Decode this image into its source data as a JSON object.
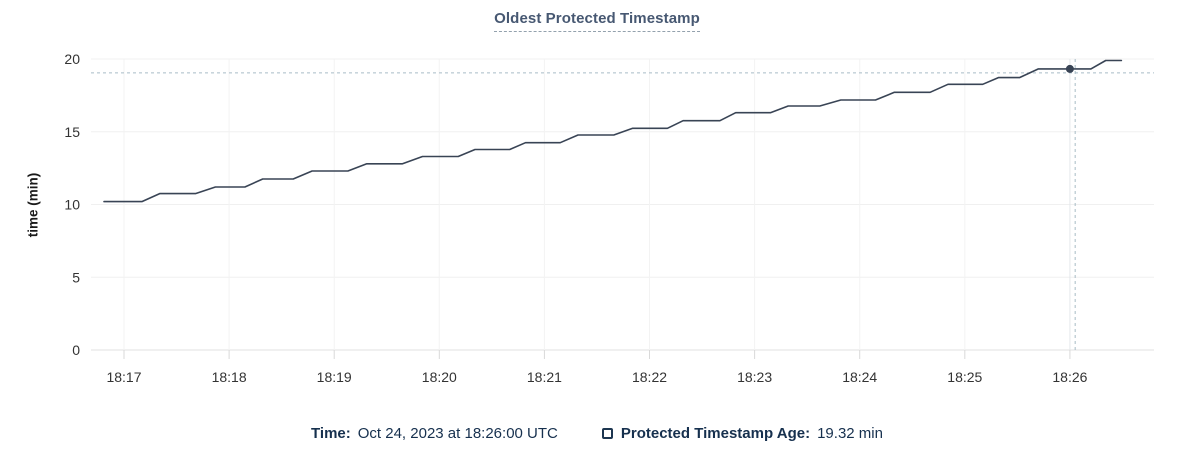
{
  "title": "Oldest Protected Timestamp",
  "colors": {
    "series_line": "#394455",
    "hover_dot": "#394455",
    "crosshair": "#a9bcc6",
    "grid_horizontal": "#f0f0f0",
    "grid_vertical": "#f3f3f3",
    "grid_hover_band": "#e4e8eb",
    "axis_line": "#e0e0e0",
    "tick_mark": "#d9d9d9",
    "tick_label": "#333333",
    "title_text": "#475872",
    "legend_text": "#16304e"
  },
  "chart_data": {
    "type": "line",
    "title": "Oldest Protected Timestamp",
    "xlabel": "",
    "ylabel": "time (min)",
    "ylim": [
      0,
      20
    ],
    "yticks": [
      {
        "v": 0,
        "label": "0"
      },
      {
        "v": 5,
        "label": "5"
      },
      {
        "v": 10,
        "label": "10"
      },
      {
        "v": 15,
        "label": "15"
      },
      {
        "v": 20,
        "label": "20"
      }
    ],
    "x_unit": "minutes after 18:00 UTC on Oct 24, 2023",
    "x_domain": [
      16.686,
      26.8
    ],
    "xticks": [
      {
        "t": 17,
        "label": "18:17"
      },
      {
        "t": 18,
        "label": "18:18"
      },
      {
        "t": 19,
        "label": "18:19"
      },
      {
        "t": 20,
        "label": "18:20"
      },
      {
        "t": 21,
        "label": "18:21"
      },
      {
        "t": 22,
        "label": "18:22"
      },
      {
        "t": 23,
        "label": "18:23"
      },
      {
        "t": 24,
        "label": "18:24"
      },
      {
        "t": 25,
        "label": "18:25"
      },
      {
        "t": 26,
        "label": "18:26"
      }
    ],
    "grid": true,
    "legend_position": "bottom",
    "series": [
      {
        "name": "Protected Timestamp Age",
        "points": [
          [
            16.81,
            10.2
          ],
          [
            17.17,
            10.2
          ],
          [
            17.34,
            10.75
          ],
          [
            17.68,
            10.75
          ],
          [
            17.87,
            11.2
          ],
          [
            18.15,
            11.2
          ],
          [
            18.32,
            11.75
          ],
          [
            18.61,
            11.75
          ],
          [
            18.79,
            12.3
          ],
          [
            19.13,
            12.3
          ],
          [
            19.31,
            12.8
          ],
          [
            19.65,
            12.8
          ],
          [
            19.84,
            13.3
          ],
          [
            20.18,
            13.3
          ],
          [
            20.34,
            13.78
          ],
          [
            20.67,
            13.78
          ],
          [
            20.82,
            14.25
          ],
          [
            21.15,
            14.25
          ],
          [
            21.32,
            14.78
          ],
          [
            21.66,
            14.78
          ],
          [
            21.84,
            15.24
          ],
          [
            22.17,
            15.24
          ],
          [
            22.32,
            15.76
          ],
          [
            22.67,
            15.76
          ],
          [
            22.82,
            16.31
          ],
          [
            23.15,
            16.31
          ],
          [
            23.32,
            16.77
          ],
          [
            23.62,
            16.77
          ],
          [
            23.82,
            17.18
          ],
          [
            24.15,
            17.18
          ],
          [
            24.33,
            17.71
          ],
          [
            24.67,
            17.71
          ],
          [
            24.84,
            18.26
          ],
          [
            25.17,
            18.26
          ],
          [
            25.32,
            18.72
          ],
          [
            25.52,
            18.72
          ],
          [
            25.7,
            19.32
          ],
          [
            26.2,
            19.32
          ],
          [
            26.34,
            19.9
          ],
          [
            26.49,
            19.9
          ]
        ]
      }
    ],
    "hover_point": {
      "t": 26.0,
      "value": 19.32
    },
    "crosshair": {
      "t": 26.05,
      "value": 19.05
    }
  },
  "legend": {
    "time_label": "Time:",
    "time_value": "Oct 24, 2023 at 18:26:00 UTC",
    "series_label": "Protected Timestamp Age:",
    "series_value": "19.32 min"
  }
}
